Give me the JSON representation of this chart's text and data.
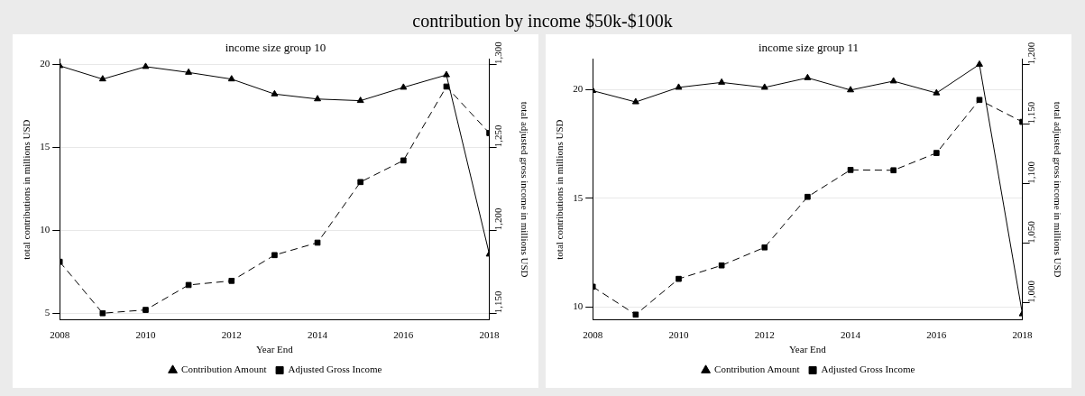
{
  "chart_data": [
    {
      "type": "line",
      "title": "contribution by income $50k-$100k",
      "subtitle": "income size group 10",
      "xlabel": "Year End",
      "ylabel": "total contributions in millions USD",
      "y2label": "total adjusted gross income in millions USD",
      "x": [
        2008,
        2009,
        2010,
        2011,
        2012,
        2013,
        2014,
        2015,
        2016,
        2017,
        2018
      ],
      "series": [
        {
          "name": "Contribution Amount",
          "color": "#000000",
          "marker": "triangle",
          "line_style": "solid",
          "values": [
            19.9,
            19.1,
            19.85,
            19.5,
            19.1,
            18.2,
            17.9,
            17.8,
            18.6,
            19.35,
            8.55
          ]
        },
        {
          "name": "Adjusted Gross Income",
          "color": "#000000",
          "marker": "square",
          "line_style": "dashed",
          "axis": "y2",
          "values": [
            1181,
            1150,
            1152,
            1167,
            1169.5,
            1185,
            1192.5,
            1229,
            1242,
            1286.5,
            1258.5
          ]
        }
      ],
      "xlim": [
        2008,
        2018
      ],
      "xticks": [
        2008,
        2010,
        2012,
        2014,
        2016,
        2018
      ],
      "ylim": [
        4.6,
        20.3
      ],
      "yticks": [
        5,
        10,
        15,
        20
      ],
      "y2lim": [
        1146,
        1303
      ],
      "y2ticks": [
        {
          "value": 1150,
          "label": "1,150"
        },
        {
          "value": 1200,
          "label": "1,200"
        },
        {
          "value": 1250,
          "label": "1,250"
        },
        {
          "value": 1300,
          "label": "1,300"
        }
      ],
      "grid": "y",
      "legend": "bottom"
    },
    {
      "type": "line",
      "title": "income size group 11",
      "xlabel": "Year End",
      "ylabel": "total contributions in millions USD",
      "y2label": "total adjusted gross income in millions USD",
      "x": [
        2008,
        2009,
        2010,
        2011,
        2012,
        2013,
        2014,
        2015,
        2016,
        2017,
        2018
      ],
      "series": [
        {
          "name": "Contribution Amount",
          "color": "#000000",
          "marker": "triangle",
          "line_style": "solid",
          "values": [
            19.95,
            19.43,
            20.1,
            20.33,
            20.1,
            20.54,
            19.98,
            20.39,
            19.84,
            21.16,
            9.67
          ]
        },
        {
          "name": "Adjusted Gross Income",
          "color": "#000000",
          "marker": "square",
          "line_style": "dashed",
          "axis": "y2",
          "values": [
            1013.6,
            990.2,
            1020.2,
            1031.5,
            1046.6,
            1089,
            1111.6,
            1111.3,
            1125.8,
            1170.3,
            1151.9
          ]
        }
      ],
      "xlim": [
        2008,
        2018
      ],
      "xticks": [
        2008,
        2010,
        2012,
        2014,
        2016,
        2018
      ],
      "ylim": [
        9.4,
        21.4
      ],
      "yticks": [
        10,
        15,
        20
      ],
      "y2lim": [
        985.8,
        1204.5
      ],
      "y2ticks": [
        {
          "value": 1000,
          "label": "1,000"
        },
        {
          "value": 1050,
          "label": "1,050"
        },
        {
          "value": 1100,
          "label": "1,100"
        },
        {
          "value": 1150,
          "label": "1,150"
        },
        {
          "value": 1200,
          "label": "1,200"
        }
      ],
      "grid": "y",
      "legend": "bottom"
    }
  ]
}
